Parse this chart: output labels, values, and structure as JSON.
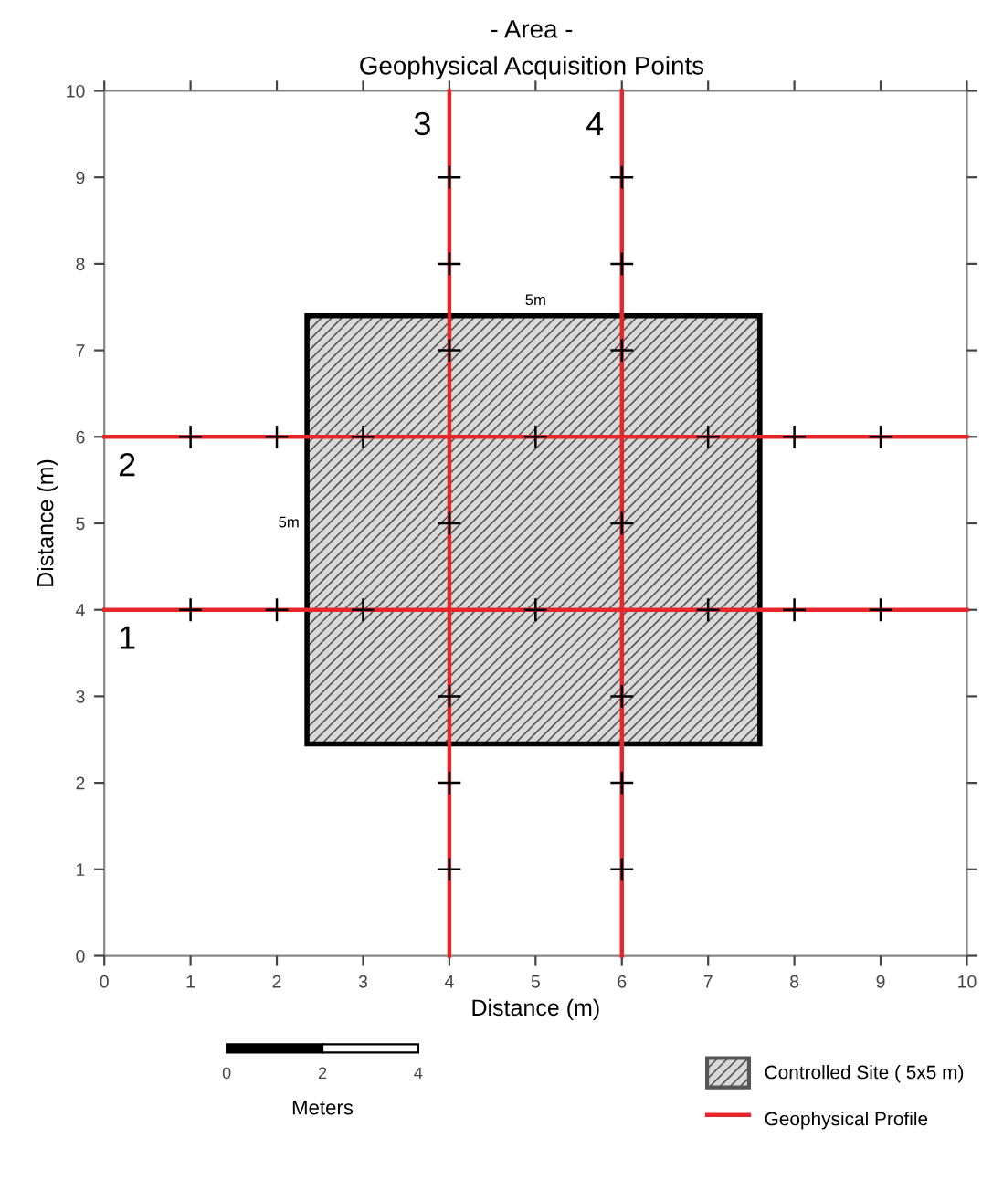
{
  "chart_data": {
    "type": "line",
    "title": "- Area -",
    "subtitle": "Geophysical Acquisition Points",
    "xlabel": "Distance (m)",
    "ylabel": "Distance (m)",
    "xlim": [
      0,
      10
    ],
    "ylim": [
      0,
      10
    ],
    "xticks": [
      0,
      1,
      2,
      3,
      4,
      5,
      6,
      7,
      8,
      9,
      10
    ],
    "yticks": [
      0,
      1,
      2,
      3,
      4,
      5,
      6,
      7,
      8,
      9,
      10
    ],
    "legend": "bottom right",
    "series": [
      {
        "type": "area",
        "name": "Controlled Site ( 5x5 m)",
        "color": "#d9d9d9",
        "x": [
          2.35,
          2.35,
          7.6,
          7.6
        ],
        "values": [
          2.45,
          7.4,
          7.4,
          2.45
        ]
      },
      {
        "name": "Geophysical Profile",
        "color": "#e8262a",
        "line_style": "solid",
        "x": [
          0,
          10
        ],
        "values": [
          4,
          4
        ]
      },
      {
        "color": "#e8262a",
        "line_style": "solid",
        "x": [
          0,
          10
        ],
        "values": [
          6,
          6
        ]
      },
      {
        "color": "#e8262a",
        "line_style": "solid",
        "x": [
          4,
          4
        ],
        "values": [
          0,
          10
        ]
      },
      {
        "color": "#e8262a",
        "line_style": "solid",
        "x": [
          6,
          6
        ],
        "values": [
          0,
          10
        ]
      },
      {
        "type": "scatter",
        "color": "#000000",
        "marker": "cross",
        "x": [
          1,
          2,
          3,
          5,
          7,
          8,
          9,
          1,
          2,
          3,
          5,
          7,
          8,
          9,
          4,
          4,
          4,
          4,
          4,
          4,
          4,
          6,
          6,
          6,
          6,
          6,
          6,
          6
        ],
        "values": [
          4,
          4,
          4,
          4,
          4,
          4,
          4,
          6,
          6,
          6,
          6,
          6,
          6,
          6,
          1,
          2,
          3,
          5,
          7,
          8,
          9,
          1,
          2,
          3,
          5,
          7,
          8,
          9
        ]
      }
    ],
    "annotations": [
      {
        "text": "1",
        "x": 0,
        "y": 4
      },
      {
        "text": "2",
        "x": 0,
        "y": 6
      },
      {
        "text": "3",
        "x": 4,
        "y": 10
      },
      {
        "text": "4",
        "x": 6,
        "y": 10
      },
      {
        "text": "5m",
        "x": 5,
        "y": 7.4
      },
      {
        "text": "5m",
        "x": 2.35,
        "y": 5
      },
      "0",
      "2",
      "4",
      "Meters"
    ]
  }
}
